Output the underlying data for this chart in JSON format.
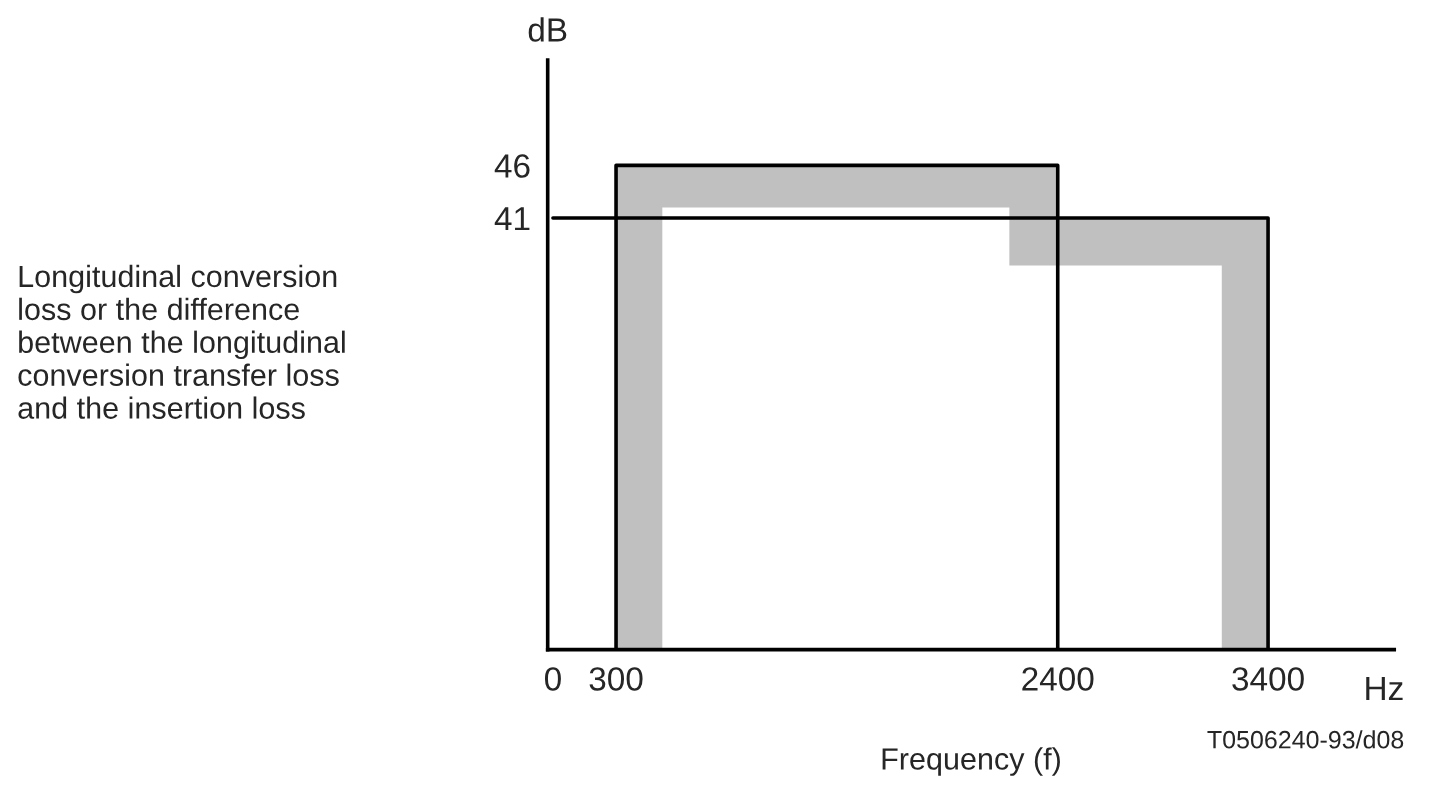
{
  "chart_data": {
    "type": "step",
    "ylabel": "dB",
    "xlabel": "Frequency (f)",
    "annotations": [
      "Longitudinal conversion\nloss or the difference\nbetween the longitudinal\nconversion transfer loss\nand the insertion loss",
      "Hz",
      "T0506240-93/d08"
    ],
    "xlim": [
      -25,
      4000
    ],
    "ylim": [
      0,
      56
    ],
    "xticks": [
      0,
      300,
      2400,
      3400
    ],
    "yticks": [
      41,
      46
    ],
    "grid": false,
    "legend": false,
    "series": [
      {
        "color": "#000000",
        "x": [
          300,
          300,
          520,
          2170,
          2400,
          3180,
          3400,
          3400
        ],
        "values": [
          0,
          46,
          46,
          46,
          41,
          41,
          41,
          0
        ],
        "lower": [
          0,
          0,
          42,
          36.5,
          36.5,
          0,
          0,
          0
        ],
        "upper": [
          0,
          46,
          46,
          46,
          41,
          41,
          41,
          0
        ]
      },
      {
        "type": "line",
        "color": "#000000",
        "x": [
          0,
          2400,
          2400
        ],
        "values": [
          41,
          41,
          0
        ]
      }
    ]
  }
}
